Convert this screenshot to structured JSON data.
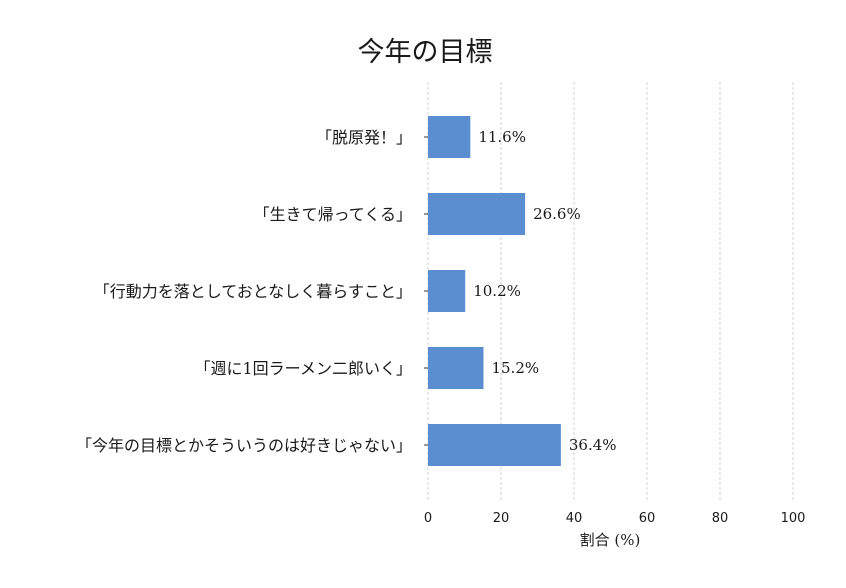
{
  "chart_data": {
    "type": "bar",
    "orientation": "horizontal",
    "title": "今年の目標",
    "xlabel": "割合 (%)",
    "ylabel": "",
    "xlim": [
      0,
      100
    ],
    "xticks": [
      "0",
      "20",
      "40",
      "60",
      "80",
      "100"
    ],
    "grid": true,
    "categories": [
      "「脱原発！」",
      "「生きて帰ってくる」",
      "「行動力を落としておとなしく暮らすこと」",
      "「週に1回ラーメン二郎いく」",
      "「今年の目標とかそういうのは好きじゃない」"
    ],
    "values": [
      11.6,
      26.6,
      10.2,
      15.2,
      36.4
    ],
    "value_labels": [
      "11.6%",
      "26.6%",
      "10.2%",
      "15.2%",
      "36.4%"
    ],
    "bar_color": "#5b8dd1",
    "grid_color": "#c8c8c8"
  }
}
